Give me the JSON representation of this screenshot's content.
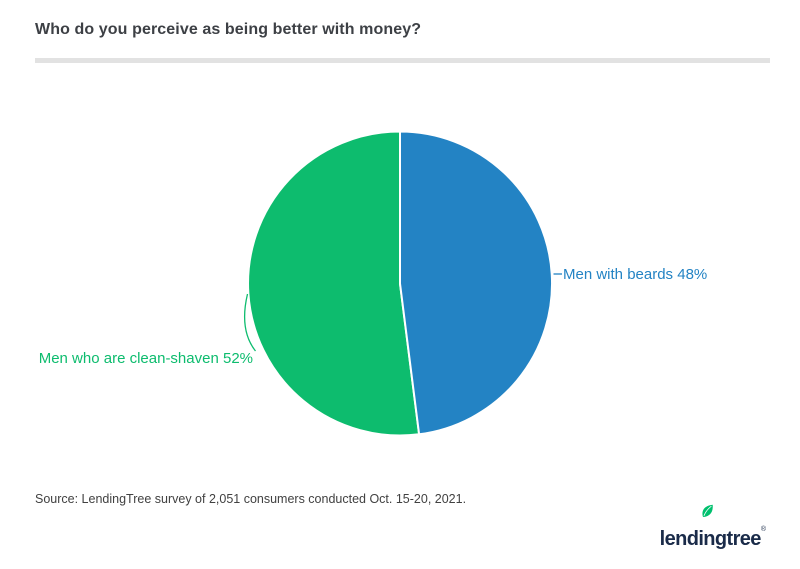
{
  "header": {
    "title": "Who do you perceive as being better with money?"
  },
  "chart_data": {
    "type": "pie",
    "title": "Who do you perceive as being better with money?",
    "slices": [
      {
        "label": "Men with beards",
        "value": 48,
        "percent_label": "48%",
        "label_text": "Men with beards 48%",
        "color": "#2383c4"
      },
      {
        "label": "Men who are clean-shaven",
        "value": 52,
        "percent_label": "52%",
        "label_text": "Men who are clean-shaven 52%",
        "color": "#0dbc6e"
      }
    ],
    "start_angle_deg": 0,
    "direction": "clockwise",
    "slice_border_color": "#ffffff",
    "legend": "none",
    "label_style": "callout"
  },
  "source": {
    "text": "Source: LendingTree survey of 2,051 consumers conducted Oct. 15-20, 2021."
  },
  "logo": {
    "brand": "lendingtree",
    "registered": "®",
    "brand_color": "#1a2b49",
    "leaf_color": "#00c06e"
  }
}
